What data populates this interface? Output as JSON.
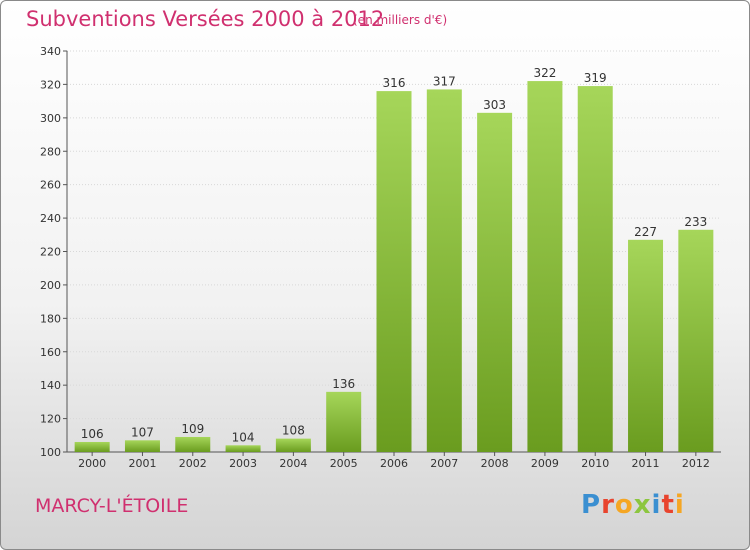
{
  "title": "Subventions Versées 2000 à 2012",
  "subtitle": "(en milliers d'€)",
  "commune": "MARCY-L'ÉTOILE",
  "logo": {
    "text": "Proxiti",
    "letters": [
      {
        "char": "P",
        "color": "#3a8fd1"
      },
      {
        "char": "r",
        "color": "#e8442e"
      },
      {
        "char": "o",
        "color": "#f5a623"
      },
      {
        "char": "x",
        "color": "#8cc63f"
      },
      {
        "char": "i",
        "color": "#3a8fd1"
      },
      {
        "char": "t",
        "color": "#e8442e"
      },
      {
        "char": "i",
        "color": "#f5a623"
      }
    ]
  },
  "colors": {
    "accent": "#d0306f",
    "bar_light": "#a6d65a",
    "bar_dark": "#6a9c1f"
  },
  "chart_data": {
    "type": "bar",
    "title": "Subventions Versées 2000 à 2012",
    "subtitle": "(en milliers d'€)",
    "categories": [
      "2000",
      "2001",
      "2002",
      "2003",
      "2004",
      "2005",
      "2006",
      "2007",
      "2008",
      "2009",
      "2010",
      "2011",
      "2012"
    ],
    "values": [
      106,
      107,
      109,
      104,
      108,
      136,
      316,
      317,
      303,
      322,
      319,
      227,
      233
    ],
    "ylim": [
      100,
      340
    ],
    "yticks": [
      100,
      120,
      140,
      160,
      180,
      200,
      220,
      240,
      260,
      280,
      300,
      320,
      340
    ],
    "grid": true
  }
}
